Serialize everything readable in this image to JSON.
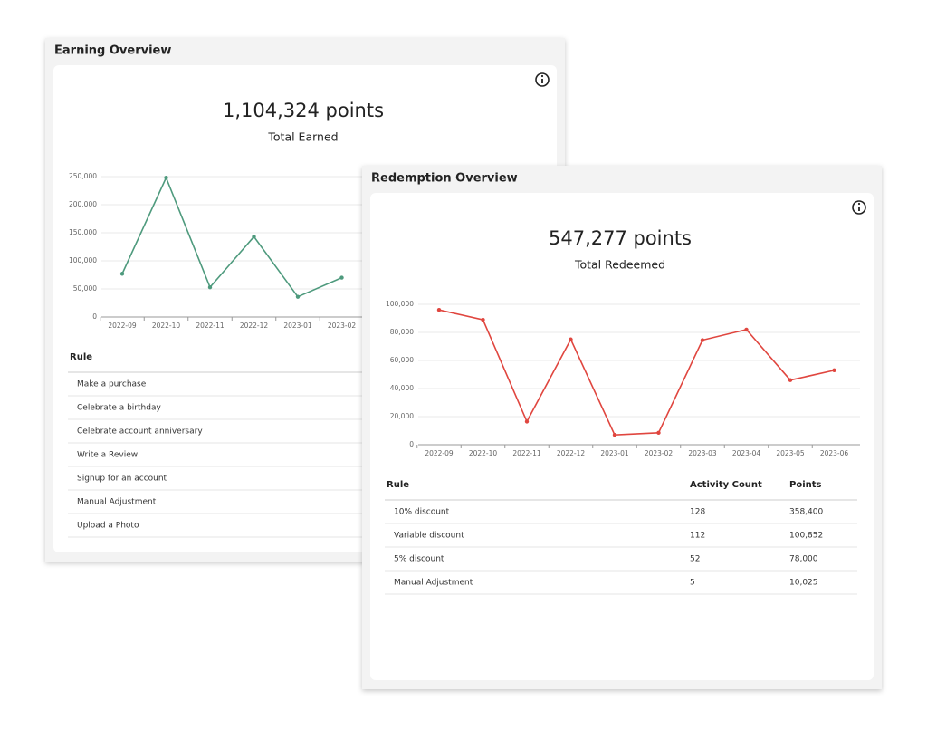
{
  "chart_data": [
    {
      "type": "line",
      "title": "Earning Overview",
      "total": "1,104,324 points",
      "total_label": "Total Earned",
      "x": [
        "2022-09",
        "2022-10",
        "2022-11",
        "2022-12",
        "2023-01",
        "2023-02"
      ],
      "values": [
        77000,
        248000,
        53000,
        143000,
        36000,
        70000
      ],
      "color": "#4e9a7d",
      "ylim": [
        0,
        250000
      ],
      "yticks": [
        0,
        {
          "value": 50000,
          "label": "50,000"
        },
        {
          "value": 100000,
          "label": "100,000"
        },
        {
          "value": 150000,
          "label": "150,000"
        },
        {
          "value": 200000,
          "label": "200,000"
        },
        {
          "value": 250000,
          "label": "250,000"
        }
      ],
      "grid": true,
      "table": {
        "columns": [
          "Rule"
        ],
        "rows": [
          [
            "Make a purchase"
          ],
          [
            "Celebrate a birthday"
          ],
          [
            "Celebrate account anniversary"
          ],
          [
            "Write a Review"
          ],
          [
            "Signup for an account"
          ],
          [
            "Manual Adjustment"
          ],
          [
            "Upload a Photo"
          ]
        ]
      }
    },
    {
      "type": "line",
      "title": "Redemption Overview",
      "total": "547,277 points",
      "total_label": "Total Redeemed",
      "x": [
        "2022-09",
        "2022-10",
        "2022-11",
        "2022-12",
        "2023-01",
        "2023-02",
        "2023-03",
        "2023-04",
        "2023-05",
        "2023-06"
      ],
      "values": [
        96000,
        89000,
        16500,
        75000,
        7000,
        8500,
        74500,
        82000,
        46000,
        53000
      ],
      "color": "#e0463f",
      "ylim": [
        0,
        100000
      ],
      "yticks": [
        0,
        {
          "value": 20000,
          "label": "20,000"
        },
        {
          "value": 40000,
          "label": "40,000"
        },
        {
          "value": 60000,
          "label": "60,000"
        },
        {
          "value": 80000,
          "label": "80,000"
        },
        {
          "value": 100000,
          "label": "100,000"
        }
      ],
      "grid": true,
      "table": {
        "columns": [
          "Rule",
          "Activity Count",
          "Points"
        ],
        "rows": [
          [
            "10% discount",
            128,
            "358,400"
          ],
          [
            "Variable discount",
            112,
            "100,852"
          ],
          [
            "5% discount",
            52,
            "78,000"
          ],
          [
            "Manual Adjustment",
            5,
            "10,025"
          ]
        ]
      }
    }
  ]
}
